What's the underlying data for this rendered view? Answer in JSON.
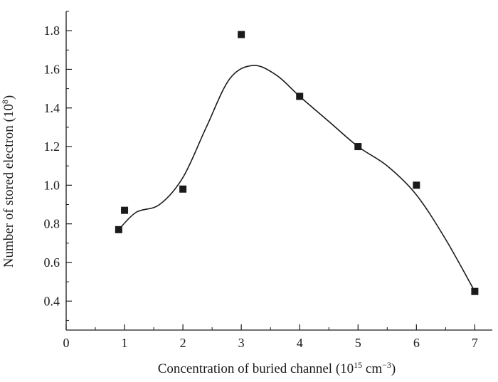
{
  "chart_data": {
    "type": "scatter",
    "title": "",
    "xlabel": {
      "main": "Concentration of buried channel (10",
      "sup1": "15",
      "mid": " cm",
      "sup2": "−3",
      "end": ")"
    },
    "ylabel": {
      "main": "Number of stored electron (10",
      "sup": "8",
      "end": ")"
    },
    "xlim": [
      0,
      7.3
    ],
    "ylim": [
      0.25,
      1.9
    ],
    "x_ticks": [
      0,
      1,
      2,
      3,
      4,
      5,
      6,
      7
    ],
    "x_tick_labels": [
      "0",
      "1",
      "2",
      "3",
      "4",
      "5",
      "6",
      "7"
    ],
    "y_ticks": [
      0.4,
      0.6,
      0.8,
      1.0,
      1.2,
      1.4,
      1.6,
      1.8
    ],
    "y_tick_labels": [
      "0.4",
      "0.6",
      "0.8",
      "1.0",
      "1.2",
      "1.4",
      "1.6",
      "1.8"
    ],
    "grid": false,
    "legend": "none",
    "series": [
      {
        "marker": "square",
        "color": "#1a1a1a",
        "points": [
          {
            "x": 0.9,
            "y": 0.77
          },
          {
            "x": 1.0,
            "y": 0.87
          },
          {
            "x": 2.0,
            "y": 0.98
          },
          {
            "x": 3.0,
            "y": 1.78
          },
          {
            "x": 4.0,
            "y": 1.46
          },
          {
            "x": 5.0,
            "y": 1.2
          },
          {
            "x": 6.0,
            "y": 1.0
          },
          {
            "x": 7.0,
            "y": 0.45
          }
        ]
      },
      {
        "type": "line",
        "style": "smooth",
        "color": "#1a1a1a",
        "points": [
          {
            "x": 0.9,
            "y": 0.77
          },
          {
            "x": 1.2,
            "y": 0.86
          },
          {
            "x": 1.6,
            "y": 0.9
          },
          {
            "x": 2.0,
            "y": 1.04
          },
          {
            "x": 2.4,
            "y": 1.3
          },
          {
            "x": 2.8,
            "y": 1.55
          },
          {
            "x": 3.2,
            "y": 1.62
          },
          {
            "x": 3.6,
            "y": 1.57
          },
          {
            "x": 4.0,
            "y": 1.46
          },
          {
            "x": 4.5,
            "y": 1.33
          },
          {
            "x": 5.0,
            "y": 1.2
          },
          {
            "x": 5.5,
            "y": 1.1
          },
          {
            "x": 6.0,
            "y": 0.95
          },
          {
            "x": 6.5,
            "y": 0.72
          },
          {
            "x": 7.0,
            "y": 0.45
          }
        ]
      }
    ]
  }
}
